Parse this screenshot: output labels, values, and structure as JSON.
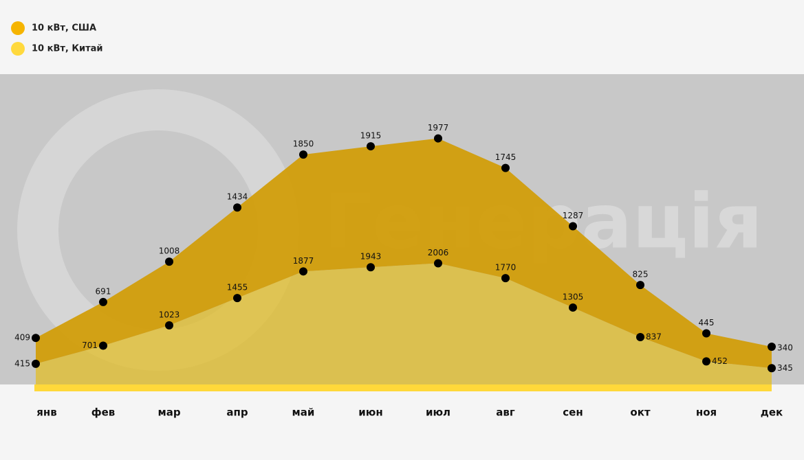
{
  "chart_data": {
    "type": "stacked-area",
    "watermark": "Генерація",
    "categories": [
      "янв",
      "фев",
      "мар",
      "апр",
      "май",
      "июн",
      "июл",
      "авг",
      "сен",
      "окт",
      "ноя",
      "дек"
    ],
    "series": [
      {
        "name": "10 кВт, Китай",
        "color": "#ffd93d",
        "values": [
          415,
          701,
          1023,
          1455,
          1877,
          1943,
          2006,
          1770,
          1305,
          837,
          452,
          345
        ]
      },
      {
        "name": "10 кВт, США",
        "color": "#f5b400",
        "values": [
          409,
          691,
          1008,
          1434,
          1850,
          1915,
          1977,
          1745,
          1287,
          825,
          445,
          340
        ]
      }
    ],
    "ylim": [
      0,
      4000
    ]
  }
}
